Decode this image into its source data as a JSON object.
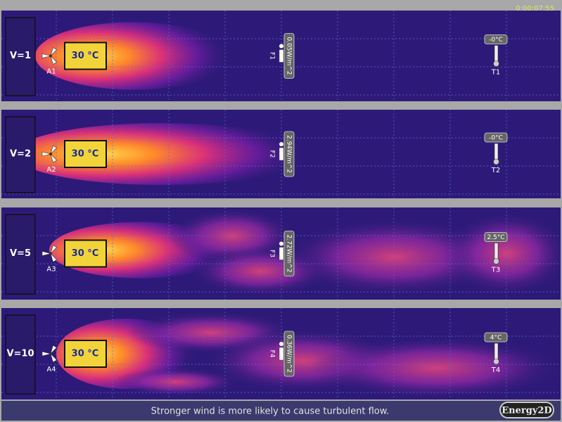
{
  "timer": "0:00:07:55",
  "panels": [
    {
      "label": "V=1",
      "heater": "30 °C",
      "fan": "A1",
      "flux_sensor": "F1",
      "flux": "0.05W/m^2",
      "thermometer": "T1",
      "temperature": "-0°C"
    },
    {
      "label": "V=2",
      "heater": "30 °C",
      "fan": "A2",
      "flux_sensor": "F2",
      "flux": "2.94W/m^2",
      "thermometer": "T2",
      "temperature": "-0°C"
    },
    {
      "label": "V=5",
      "heater": "30 °C",
      "fan": "A3",
      "flux_sensor": "F3",
      "flux": "2.72W/m^2",
      "thermometer": "T3",
      "temperature": "2.5°C"
    },
    {
      "label": "V=10",
      "heater": "30 °C",
      "fan": "A4",
      "flux_sensor": "F4",
      "flux": "0.36W/m^2",
      "thermometer": "T4",
      "temperature": "4°C"
    }
  ],
  "footer": "Stronger wind is more likely to cause turbulent flow.",
  "logo": "Energy2D"
}
